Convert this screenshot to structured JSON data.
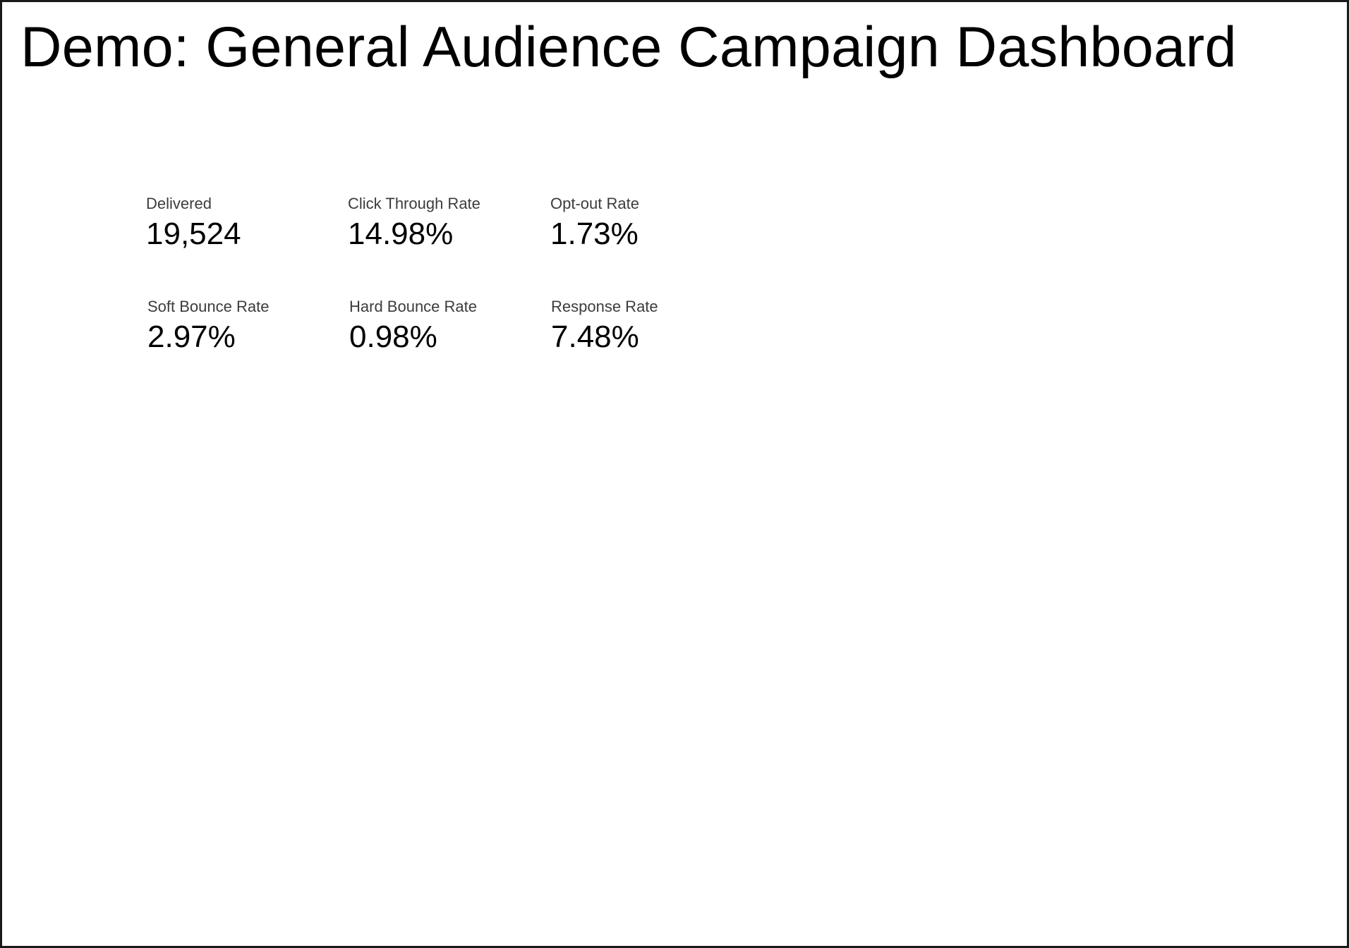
{
  "header": {
    "title": "Demo: General Audience Campaign Dashboard"
  },
  "scorecards": [
    {
      "label": "Delivered",
      "value": "19,524"
    },
    {
      "label": "Click Through Rate",
      "value": "14.98%"
    },
    {
      "label": "Opt-out Rate",
      "value": "1.73%"
    },
    {
      "label": "Soft Bounce Rate",
      "value": "2.97%"
    },
    {
      "label": "Hard Bounce Rate",
      "value": "0.98%"
    },
    {
      "label": "Response Rate",
      "value": "7.48%"
    }
  ]
}
